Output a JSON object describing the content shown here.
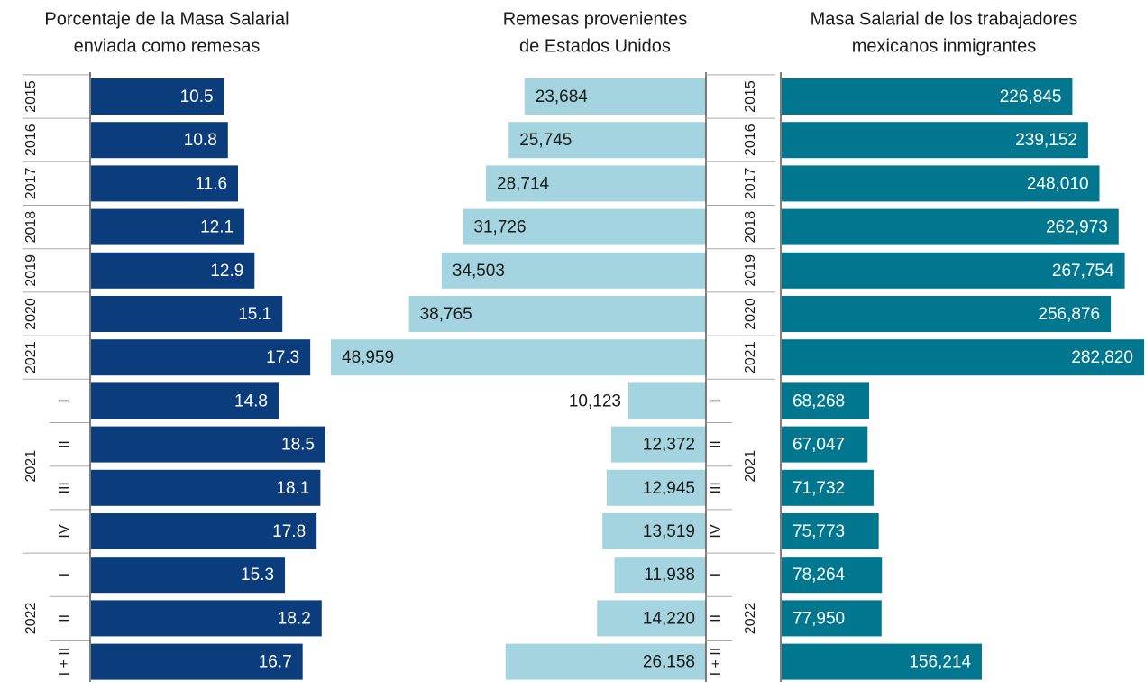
{
  "chart_data": [
    {
      "type": "hbar",
      "title": [
        "Porcentaje de la Masa Salarial",
        "enviada como remesas"
      ],
      "categories": [
        "2015",
        "2016",
        "2017",
        "2018",
        "2019",
        "2020",
        "2021",
        "I",
        "II",
        "III",
        "IV",
        "I",
        "II",
        "I + II"
      ],
      "groups": [
        "2021",
        "2022"
      ],
      "values": [
        10.5,
        10.8,
        11.6,
        12.1,
        12.9,
        15.1,
        17.3,
        14.8,
        18.5,
        18.1,
        17.8,
        15.3,
        18.2,
        16.7
      ],
      "color": "#0b3d7c",
      "label_color": "#ffffff"
    },
    {
      "type": "hbar-left",
      "title": [
        "Remesas provenientes",
        "de Estados Unidos"
      ],
      "values": [
        23684,
        25745,
        28714,
        31726,
        34503,
        38765,
        48959,
        10123,
        12372,
        12945,
        13519,
        11938,
        14220,
        26158
      ],
      "value_labels": [
        "23,684",
        "25,745",
        "28,714",
        "31,726",
        "34,503",
        "38,765",
        "48,959",
        "10,123",
        "12,372",
        "12,945",
        "13,519",
        "11,938",
        "14,220",
        "26,158"
      ],
      "color": "#a4d4e0",
      "label_color": "#1a1a1a"
    },
    {
      "type": "hbar",
      "title": [
        "Masa Salarial de los trabajadores",
        "mexicanos inmigrantes"
      ],
      "categories": [
        "2015",
        "2016",
        "2017",
        "2018",
        "2019",
        "2020",
        "2021",
        "I",
        "II",
        "III",
        "IV",
        "I",
        "II",
        "I + II"
      ],
      "groups": [
        "2021",
        "2022"
      ],
      "values": [
        226845,
        239152,
        248010,
        262973,
        267754,
        256876,
        282820,
        68268,
        67047,
        71732,
        75773,
        78264,
        77950,
        156214
      ],
      "value_labels": [
        "226,845",
        "239,152",
        "248,010",
        "262,973",
        "267,754",
        "256,876",
        "282,820",
        "68,268",
        "67,047",
        "71,732",
        "75,773",
        "78,264",
        "77,950",
        "156,214"
      ],
      "color": "#00778f",
      "label_color": "#ffffff"
    }
  ]
}
